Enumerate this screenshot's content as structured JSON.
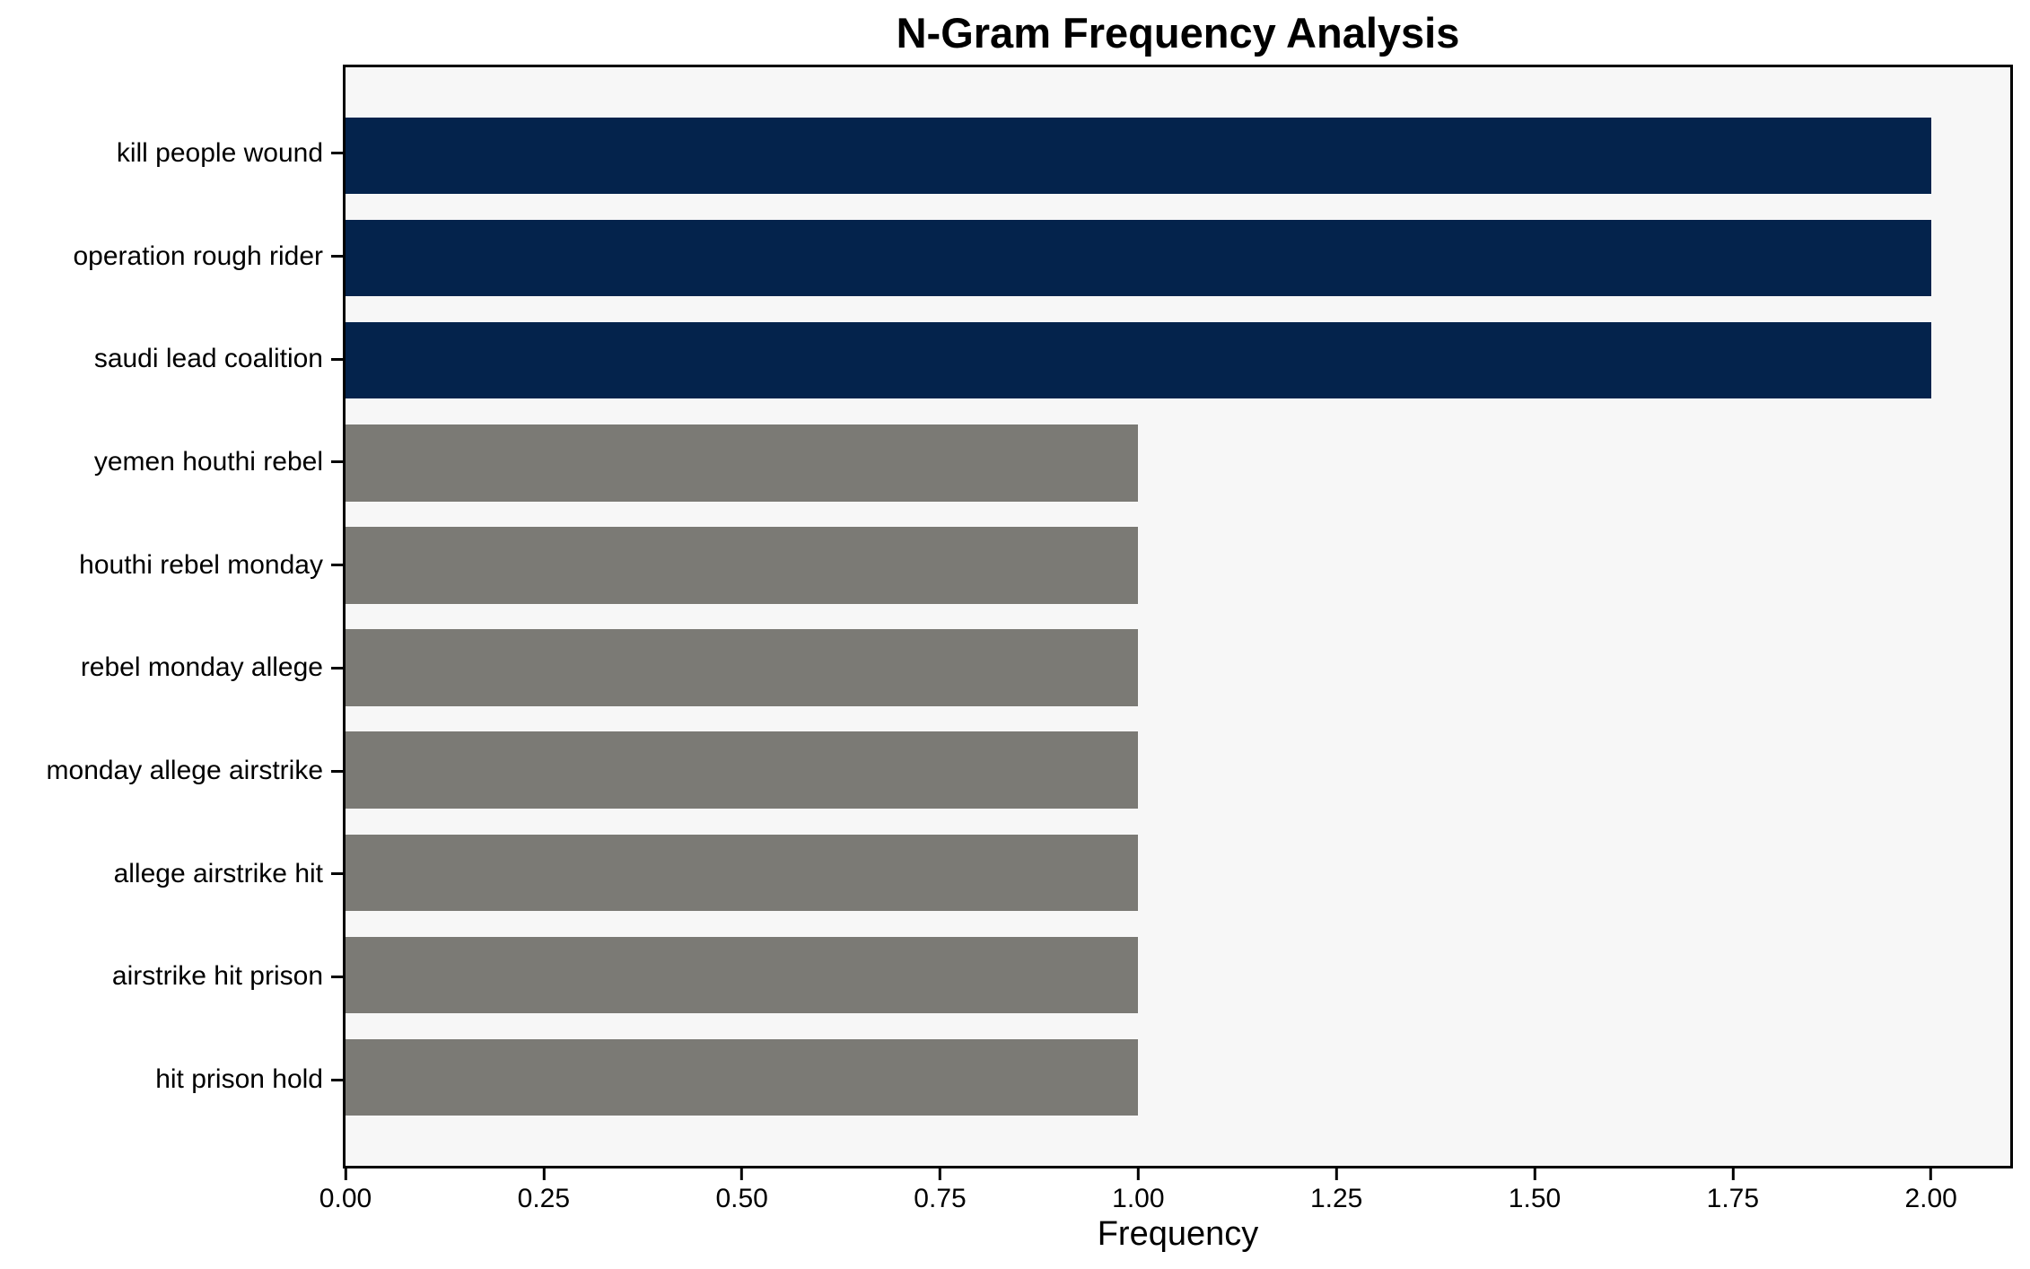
{
  "chart_data": {
    "type": "bar",
    "orientation": "horizontal",
    "title": "N-Gram Frequency Analysis",
    "xlabel": "Frequency",
    "ylabel": "",
    "categories": [
      "kill people wound",
      "operation rough rider",
      "saudi lead coalition",
      "yemen houthi rebel",
      "houthi rebel monday",
      "rebel monday allege",
      "monday allege airstrike",
      "allege airstrike hit",
      "airstrike hit prison",
      "hit prison hold"
    ],
    "values": [
      2,
      2,
      2,
      1,
      1,
      1,
      1,
      1,
      1,
      1
    ],
    "bar_colors": [
      "#04234c",
      "#04234c",
      "#04234c",
      "#7b7a75",
      "#7b7a75",
      "#7b7a75",
      "#7b7a75",
      "#7b7a75",
      "#7b7a75",
      "#7b7a75"
    ],
    "x_ticks": [
      "0.00",
      "0.25",
      "0.50",
      "0.75",
      "1.00",
      "1.25",
      "1.50",
      "1.75",
      "2.00"
    ],
    "x_tick_values": [
      0,
      0.25,
      0.5,
      0.75,
      1.0,
      1.25,
      1.5,
      1.75,
      2.0
    ],
    "xlim": [
      0,
      2.1
    ],
    "grid": false,
    "legend": null,
    "bar_thickness": 0.75,
    "plot_bg": "#f7f7f7",
    "figure_bg": "#ffffff",
    "spine_color": "#000000",
    "text_color": "#000000",
    "accent_navy": "#04234c",
    "accent_gray": "#7b7a75"
  }
}
